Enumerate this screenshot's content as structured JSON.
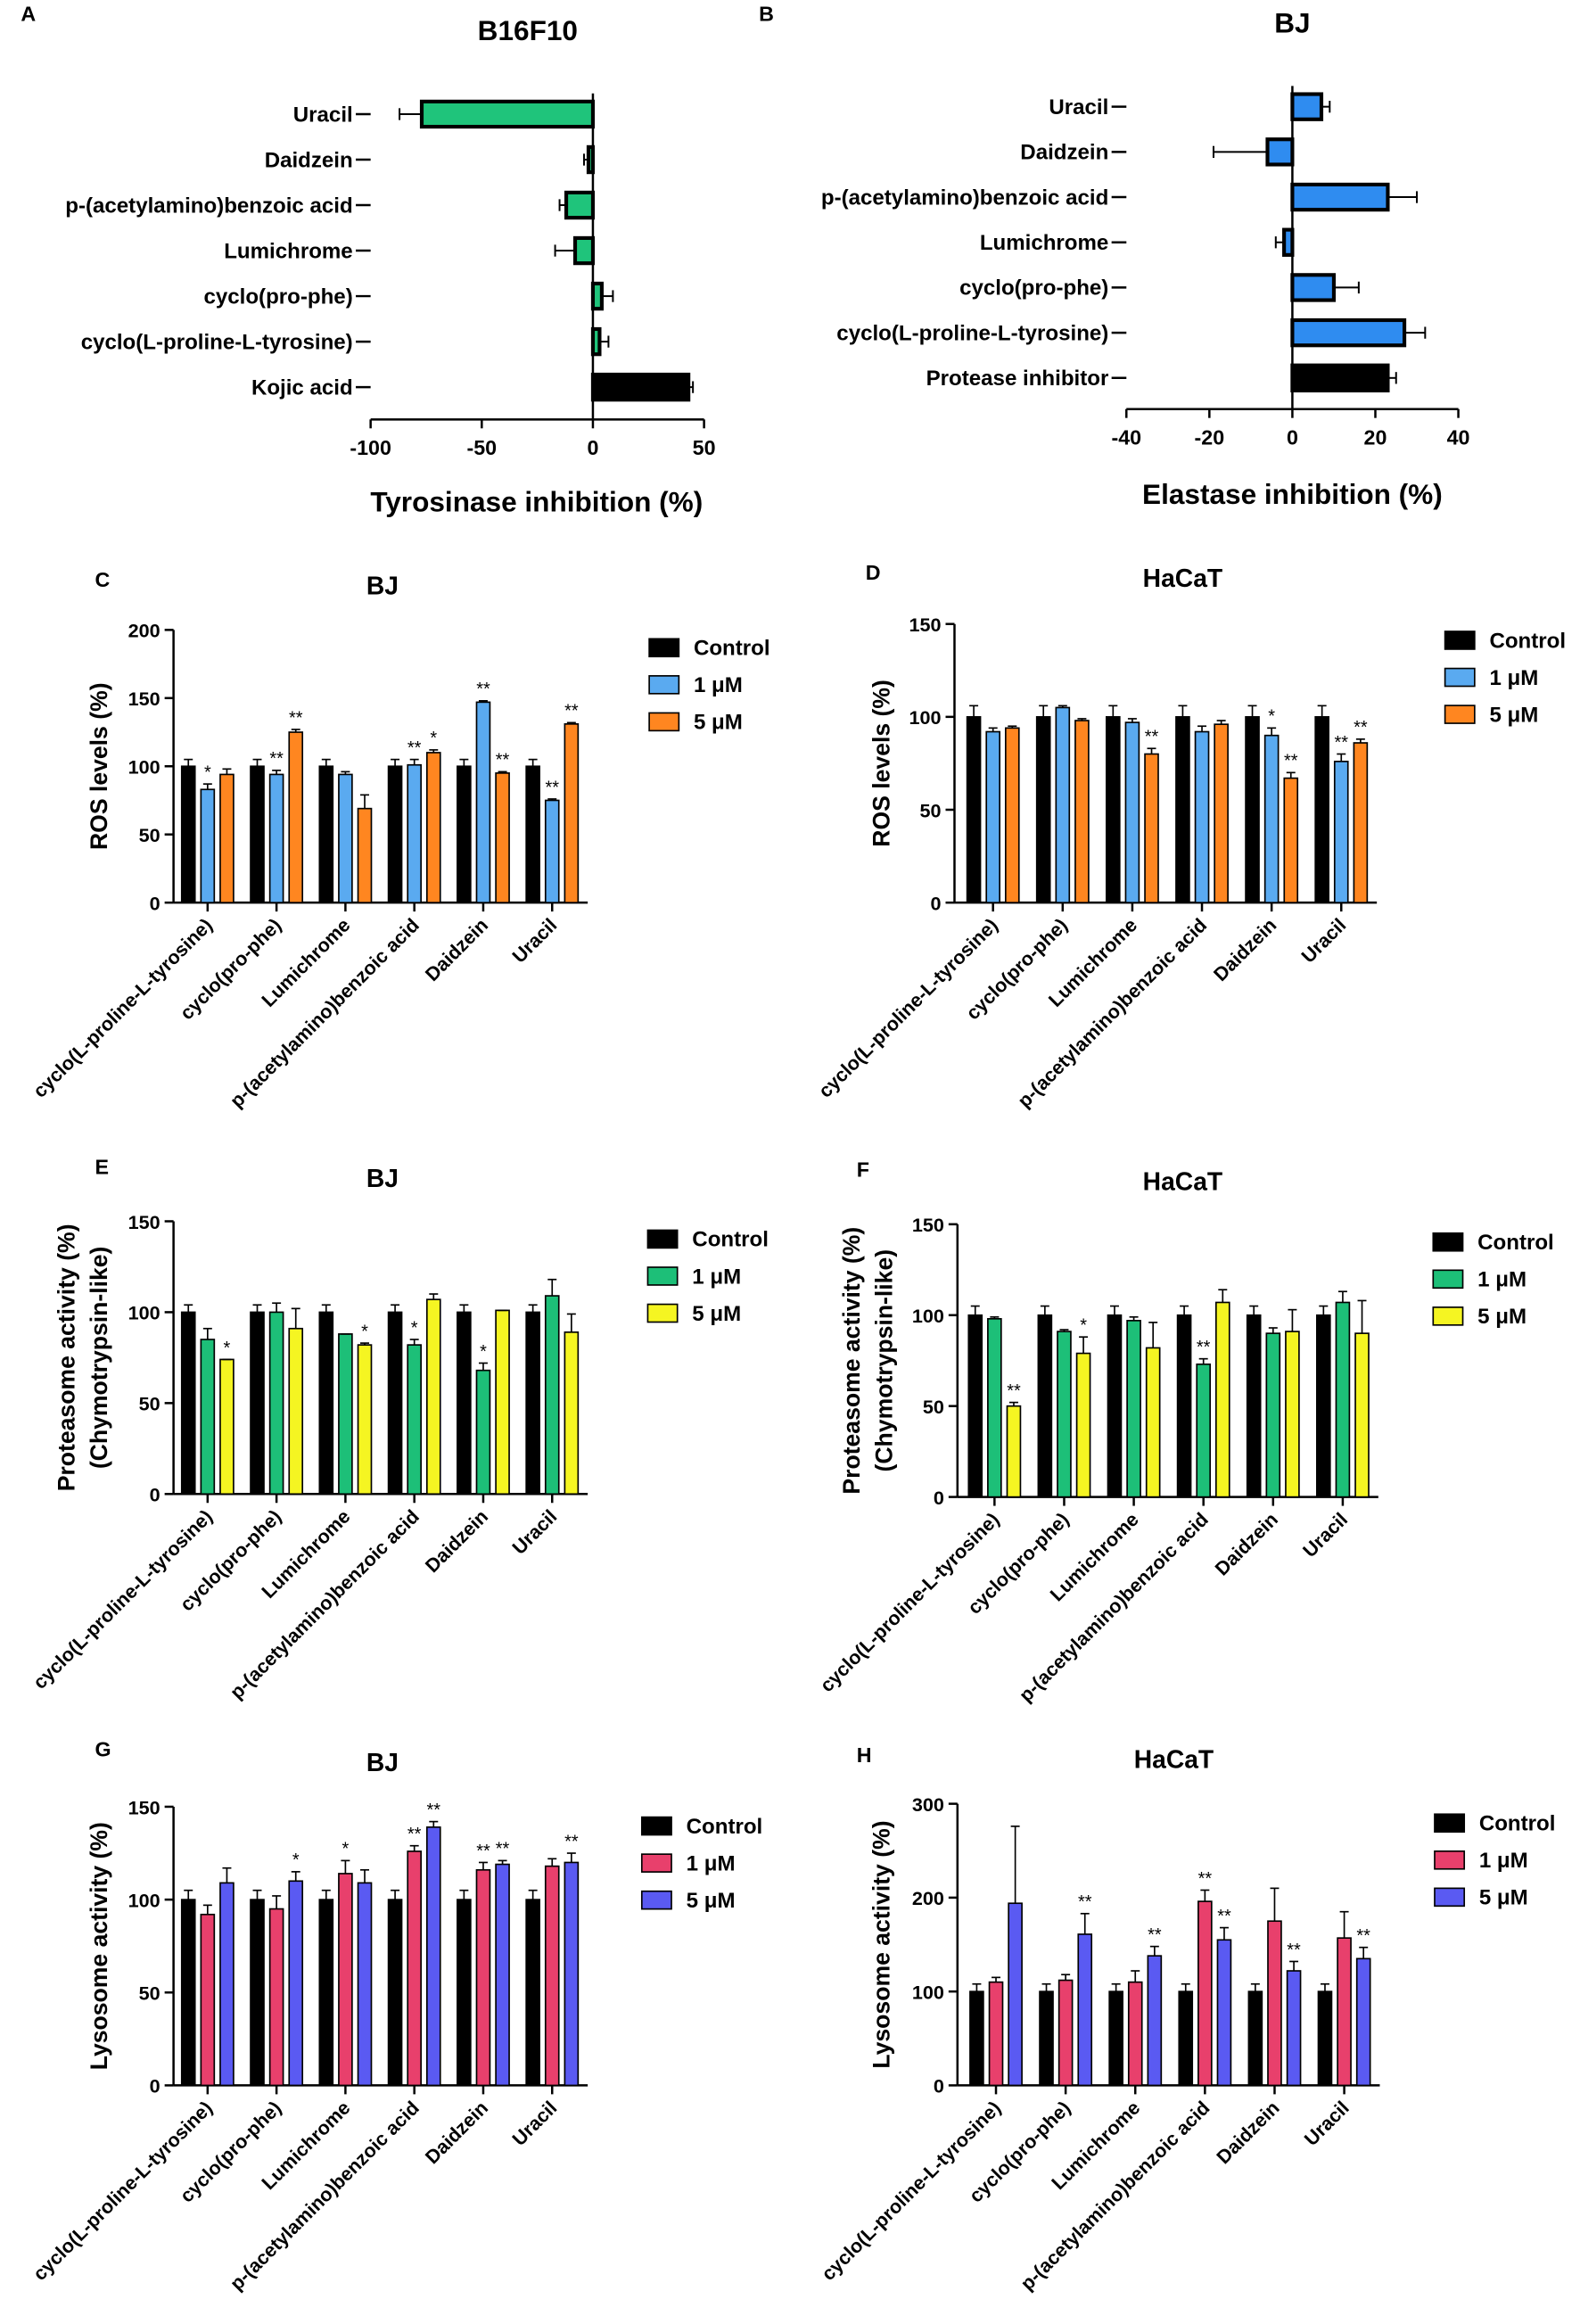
{
  "colors": {
    "green": "#1fc47b",
    "blue": "#2f8cf0",
    "black": "#000000",
    "lightblue": "#5aaaf0",
    "orange": "#ff8620",
    "yellow": "#f5f522",
    "pink": "#e8406c",
    "violet": "#5a5af2",
    "mint": "#1dbf78"
  },
  "chart_data": [
    {
      "id": "A",
      "type": "bar",
      "orientation": "horizontal",
      "panel": "A",
      "title": "B16F10",
      "xlabel": "Tyrosinase inhibition (%)",
      "xlim": [
        -100,
        50
      ],
      "xticks": [
        -100,
        -50,
        0,
        50
      ],
      "categories": [
        "Uracil",
        "Daidzein",
        "p-(acetylamino)benzoic acid",
        "Lumichrome",
        "cyclo(pro-phe)",
        "cyclo(L-proline-L-tyrosine)",
        "Kojic acid"
      ],
      "values": [
        -77,
        -2,
        -12,
        -8,
        4,
        3,
        43
      ],
      "errors": [
        10,
        2,
        3,
        9,
        5,
        4,
        2
      ],
      "colors": [
        "green",
        "green",
        "green",
        "green",
        "green",
        "green",
        "black"
      ]
    },
    {
      "id": "B",
      "type": "bar",
      "orientation": "horizontal",
      "panel": "B",
      "title": "BJ",
      "xlabel": "Elastase inhibition (%)",
      "xlim": [
        -40,
        40
      ],
      "xticks": [
        -40,
        -20,
        0,
        20,
        40
      ],
      "categories": [
        "Uracil",
        "Daidzein",
        "p-(acetylamino)benzoic acid",
        "Lumichrome",
        "cyclo(pro-phe)",
        "cyclo(L-proline-L-tyrosine)",
        "Protease inhibitor"
      ],
      "values": [
        7,
        -6,
        23,
        -2,
        10,
        27,
        23
      ],
      "errors": [
        2,
        13,
        7,
        2,
        6,
        5,
        2
      ],
      "colors": [
        "blue",
        "blue",
        "blue",
        "blue",
        "blue",
        "blue",
        "black"
      ]
    },
    {
      "id": "C",
      "type": "bar",
      "panel": "C",
      "title": "BJ",
      "ylabel": [
        "ROS levels (%)"
      ],
      "ylim": [
        0,
        200
      ],
      "yticks": [
        0,
        50,
        100,
        150,
        200
      ],
      "categories": [
        "cyclo(L-proline-L-tyrosine)",
        "cyclo(pro-phe)",
        "Lumichrome",
        "p-(acetylamino)benzoic acid",
        "Daidzein",
        "Uracil"
      ],
      "series": [
        {
          "name": "Control",
          "color": "black",
          "values": [
            100,
            100,
            100,
            100,
            100,
            100
          ],
          "errors": [
            5,
            5,
            5,
            5,
            5,
            5
          ],
          "stars": [
            "",
            "",
            "",
            "",
            "",
            ""
          ]
        },
        {
          "name": "1 μM",
          "color": "lightblue",
          "values": [
            83,
            94,
            94,
            101,
            147,
            75
          ],
          "errors": [
            4,
            3,
            2,
            4,
            1,
            1
          ],
          "stars": [
            "*",
            "**",
            "",
            "**",
            "**",
            "**"
          ]
        },
        {
          "name": "5 μM",
          "color": "orange",
          "values": [
            94,
            125,
            69,
            110,
            95,
            131
          ],
          "errors": [
            4,
            2,
            10,
            2,
            1,
            1
          ],
          "stars": [
            "",
            "**",
            "",
            "*",
            "**",
            "**"
          ]
        }
      ]
    },
    {
      "id": "D",
      "type": "bar",
      "panel": "D",
      "title": "HaCaT",
      "ylabel": [
        "ROS levels (%)"
      ],
      "ylim": [
        0,
        150
      ],
      "yticks": [
        0,
        50,
        100,
        150
      ],
      "categories": [
        "cyclo(L-proline-L-tyrosine)",
        "cyclo(pro-phe)",
        "Lumichrome",
        "p-(acetylamino)benzoic acid",
        "Daidzein",
        "Uracil"
      ],
      "series": [
        {
          "name": "Control",
          "color": "black",
          "values": [
            100,
            100,
            100,
            100,
            100,
            100
          ],
          "errors": [
            6,
            6,
            6,
            6,
            6,
            6
          ],
          "stars": [
            "",
            "",
            "",
            "",
            "",
            ""
          ]
        },
        {
          "name": "1 μM",
          "color": "lightblue",
          "values": [
            92,
            105,
            97,
            92,
            90,
            76
          ],
          "errors": [
            2,
            1,
            2,
            3,
            4,
            4
          ],
          "stars": [
            "",
            "",
            "",
            "",
            "*",
            "**"
          ]
        },
        {
          "name": "5 μM",
          "color": "orange",
          "values": [
            94,
            98,
            80,
            96,
            67,
            86
          ],
          "errors": [
            1,
            1,
            3,
            2,
            3,
            2
          ],
          "stars": [
            "",
            "",
            "**",
            "",
            "**",
            "**"
          ]
        }
      ]
    },
    {
      "id": "E",
      "type": "bar",
      "panel": "E",
      "title": "BJ",
      "ylabel": [
        "Proteasome activity (%)",
        "(Chymotrypsin-like)"
      ],
      "ylim": [
        0,
        150
      ],
      "yticks": [
        0,
        50,
        100,
        150
      ],
      "categories": [
        "cyclo(L-proline-L-tyrosine)",
        "cyclo(pro-phe)",
        "Lumichrome",
        "p-(acetylamino)benzoic acid",
        "Daidzein",
        "Uracil"
      ],
      "series": [
        {
          "name": "Control",
          "color": "black",
          "values": [
            100,
            100,
            100,
            100,
            100,
            100
          ],
          "errors": [
            4,
            4,
            4,
            4,
            4,
            4
          ],
          "stars": [
            "",
            "",
            "",
            "",
            "",
            ""
          ]
        },
        {
          "name": "1 μM",
          "color": "mint",
          "values": [
            85,
            100,
            88,
            82,
            68,
            109
          ],
          "errors": [
            6,
            5,
            0,
            3,
            4,
            9
          ],
          "stars": [
            "",
            "",
            "",
            "*",
            "*",
            ""
          ]
        },
        {
          "name": "5 μM",
          "color": "yellow",
          "values": [
            74,
            91,
            82,
            107,
            101,
            89
          ],
          "errors": [
            0,
            11,
            1,
            3,
            0,
            10
          ],
          "stars": [
            "*",
            "",
            "*",
            "",
            "",
            ""
          ]
        }
      ]
    },
    {
      "id": "F",
      "type": "bar",
      "panel": "F",
      "title": "HaCaT",
      "ylabel": [
        "Proteasome activity (%)",
        "(Chymotrypsin-like)"
      ],
      "ylim": [
        0,
        150
      ],
      "yticks": [
        0,
        50,
        100,
        150
      ],
      "categories": [
        "cyclo(L-proline-L-tyrosine)",
        "cyclo(pro-phe)",
        "Lumichrome",
        "p-(acetylamino)benzoic acid",
        "Daidzein",
        "Uracil"
      ],
      "series": [
        {
          "name": "Control",
          "color": "black",
          "values": [
            100,
            100,
            100,
            100,
            100,
            100
          ],
          "errors": [
            5,
            5,
            5,
            5,
            5,
            5
          ],
          "stars": [
            "",
            "",
            "",
            "",
            "",
            ""
          ]
        },
        {
          "name": "1 μM",
          "color": "mint",
          "values": [
            98,
            91,
            97,
            73,
            90,
            107
          ],
          "errors": [
            1,
            1,
            2,
            3,
            3,
            6
          ],
          "stars": [
            "",
            "",
            "",
            "**",
            "",
            ""
          ]
        },
        {
          "name": "5 μM",
          "color": "yellow",
          "values": [
            50,
            79,
            82,
            107,
            91,
            90
          ],
          "errors": [
            2,
            9,
            14,
            7,
            12,
            18
          ],
          "stars": [
            "**",
            "*",
            "",
            "",
            "",
            ""
          ]
        }
      ]
    },
    {
      "id": "G",
      "type": "bar",
      "panel": "G",
      "title": "BJ",
      "ylabel": [
        "Lysosome activity (%)"
      ],
      "ylim": [
        0,
        150
      ],
      "yticks": [
        0,
        50,
        100,
        150
      ],
      "categories": [
        "cyclo(L-proline-L-tyrosine)",
        "cyclo(pro-phe)",
        "Lumichrome",
        "p-(acetylamino)benzoic acid",
        "Daidzein",
        "Uracil"
      ],
      "series": [
        {
          "name": "Control",
          "color": "black",
          "values": [
            100,
            100,
            100,
            100,
            100,
            100
          ],
          "errors": [
            5,
            5,
            5,
            5,
            5,
            5
          ],
          "stars": [
            "",
            "",
            "",
            "",
            "",
            ""
          ]
        },
        {
          "name": "1 μM",
          "color": "pink",
          "values": [
            92,
            95,
            114,
            126,
            116,
            118
          ],
          "errors": [
            5,
            7,
            7,
            3,
            4,
            4
          ],
          "stars": [
            "",
            "",
            "*",
            "**",
            "**",
            ""
          ]
        },
        {
          "name": "5 μM",
          "color": "violet",
          "values": [
            109,
            110,
            109,
            139,
            119,
            120
          ],
          "errors": [
            8,
            5,
            7,
            3,
            2,
            5
          ],
          "stars": [
            "",
            "*",
            "",
            "**",
            "**",
            "**"
          ]
        }
      ]
    },
    {
      "id": "H",
      "type": "bar",
      "panel": "H",
      "title": "HaCaT",
      "ylabel": [
        "Lysosome activity (%)"
      ],
      "ylim": [
        0,
        300
      ],
      "yticks": [
        0,
        100,
        200,
        300
      ],
      "categories": [
        "cyclo(L-proline-L-tyrosine)",
        "cyclo(pro-phe)",
        "Lumichrome",
        "p-(acetylamino)benzoic acid",
        "Daidzein",
        "Uracil"
      ],
      "series": [
        {
          "name": "Control",
          "color": "black",
          "values": [
            100,
            100,
            100,
            100,
            100,
            100
          ],
          "errors": [
            8,
            8,
            8,
            8,
            8,
            8
          ],
          "stars": [
            "",
            "",
            "",
            "",
            "",
            ""
          ]
        },
        {
          "name": "1 μM",
          "color": "pink",
          "values": [
            110,
            112,
            110,
            196,
            175,
            157
          ],
          "errors": [
            5,
            6,
            12,
            12,
            35,
            28
          ],
          "stars": [
            "",
            "",
            "",
            "**",
            "",
            ""
          ]
        },
        {
          "name": "5 μM",
          "color": "violet",
          "values": [
            194,
            161,
            138,
            155,
            122,
            135
          ],
          "errors": [
            82,
            22,
            10,
            13,
            10,
            12
          ],
          "stars": [
            "",
            "**",
            "**",
            "**",
            "**",
            "**"
          ]
        }
      ]
    }
  ]
}
